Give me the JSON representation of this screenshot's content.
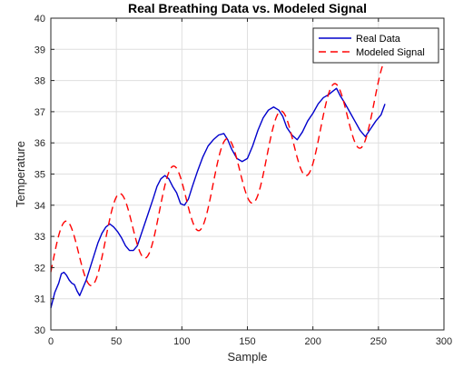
{
  "chart_data": {
    "type": "line",
    "title": "Real Breathing Data vs. Modeled Signal",
    "xlabel": "Sample",
    "ylabel": "Temperature",
    "xlim": [
      0,
      300
    ],
    "ylim": [
      30,
      40
    ],
    "xticks": [
      0,
      50,
      100,
      150,
      200,
      250,
      300
    ],
    "yticks": [
      30,
      31,
      32,
      33,
      34,
      35,
      36,
      37,
      38,
      39,
      40
    ],
    "grid": true,
    "legend_position": "top-right",
    "series": [
      {
        "name": "Real Data",
        "color": "#0000cc",
        "style": "solid",
        "x": [
          0,
          3,
          6,
          8,
          10,
          12,
          14,
          16,
          18,
          20,
          22,
          24,
          27,
          30,
          33,
          36,
          39,
          42,
          45,
          48,
          51,
          54,
          57,
          60,
          63,
          66,
          70,
          74,
          78,
          81,
          84,
          87,
          90,
          93,
          96,
          99,
          102,
          105,
          108,
          112,
          116,
          120,
          124,
          128,
          132,
          135,
          138,
          142,
          146,
          150,
          154,
          158,
          162,
          166,
          170,
          174,
          177,
          180,
          184,
          188,
          192,
          196,
          200,
          204,
          208,
          212,
          215,
          218,
          221,
          224,
          228,
          232,
          236,
          240,
          244,
          248,
          252,
          255
        ],
        "values": [
          30.7,
          31.2,
          31.5,
          31.8,
          31.85,
          31.75,
          31.6,
          31.5,
          31.45,
          31.25,
          31.1,
          31.3,
          31.6,
          32.0,
          32.4,
          32.8,
          33.1,
          33.3,
          33.4,
          33.3,
          33.15,
          32.95,
          32.7,
          32.55,
          32.55,
          32.7,
          33.2,
          33.7,
          34.2,
          34.6,
          34.85,
          34.95,
          34.85,
          34.6,
          34.4,
          34.05,
          34.0,
          34.2,
          34.6,
          35.1,
          35.55,
          35.9,
          36.1,
          36.25,
          36.3,
          36.1,
          35.8,
          35.5,
          35.4,
          35.5,
          35.9,
          36.4,
          36.8,
          37.05,
          37.15,
          37.05,
          36.85,
          36.5,
          36.25,
          36.1,
          36.35,
          36.7,
          36.95,
          37.25,
          37.45,
          37.55,
          37.65,
          37.75,
          37.5,
          37.3,
          37.0,
          36.7,
          36.4,
          36.2,
          36.45,
          36.7,
          36.9,
          37.25
        ]
      },
      {
        "name": "Modeled Signal",
        "color": "#ff0000",
        "style": "dashed",
        "model": {
          "intercept": 32.0,
          "slope": 0.0215,
          "amplitude": 1.25,
          "period": 41,
          "peak_at": 11,
          "x_start": 0,
          "x_end": 255,
          "sample_step": 1
        }
      }
    ]
  }
}
